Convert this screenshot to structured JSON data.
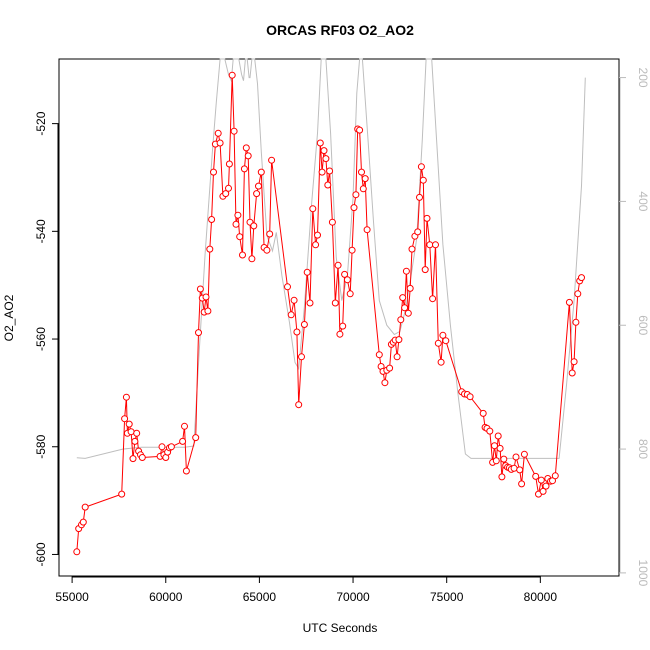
{
  "chart_data": {
    "type": "line",
    "title": "ORCAS RF03 O2_AO2",
    "xlabel": "UTC Seconds",
    "ylabel": "O2_AO2",
    "xlim": [
      54300,
      84200
    ],
    "ylim": [
      -604,
      -508
    ],
    "y2lim": [
      1005,
      170
    ],
    "y2_reversed": true,
    "x_ticks": [
      55000,
      60000,
      65000,
      70000,
      75000,
      80000
    ],
    "x_tick_labels": [
      "55000",
      "60000",
      "65000",
      "70000",
      "75000",
      "80000"
    ],
    "y_ticks": [
      -600,
      -580,
      -560,
      -540,
      -520
    ],
    "y_tick_labels": [
      "-600",
      "-580",
      "-560",
      "-540",
      "-520"
    ],
    "y2_ticks": [
      200,
      400,
      600,
      800,
      1000
    ],
    "y2_tick_labels": [
      "200",
      "400",
      "600",
      "800",
      "1000"
    ],
    "colors": {
      "main_series": "#ff0000",
      "secondary_series": "#bebebe",
      "right_axis": "#bbbbbb"
    },
    "series": [
      {
        "role": "primary",
        "points": [
          [
            55250,
            -599.5
          ],
          [
            55350,
            -595.2
          ],
          [
            55500,
            -594.5
          ],
          [
            55600,
            -594.0
          ],
          [
            55700,
            -591.2
          ],
          [
            57650,
            -588.8
          ],
          [
            57800,
            -574.8
          ],
          [
            57900,
            -570.8
          ],
          [
            57950,
            -577.5
          ],
          [
            58050,
            -575.8
          ],
          [
            58150,
            -577.2
          ],
          [
            58250,
            -582.2
          ],
          [
            58350,
            -579.0
          ],
          [
            58450,
            -577.5
          ],
          [
            58550,
            -580.8
          ],
          [
            58650,
            -581.5
          ],
          [
            58750,
            -582.0
          ],
          [
            59700,
            -581.8
          ],
          [
            59800,
            -580.0
          ],
          [
            59900,
            -581.5
          ],
          [
            60000,
            -582.0
          ],
          [
            60100,
            -581.0
          ],
          [
            60200,
            -580.2
          ],
          [
            60300,
            -580.0
          ],
          [
            60900,
            -579.0
          ],
          [
            61000,
            -576.2
          ],
          [
            61100,
            -584.5
          ],
          [
            61600,
            -578.3
          ],
          [
            61750,
            -558.8
          ],
          [
            61850,
            -550.7
          ],
          [
            61950,
            -552.4
          ],
          [
            62050,
            -555.0
          ],
          [
            62150,
            -552.2
          ],
          [
            62250,
            -554.8
          ],
          [
            62350,
            -543.3
          ],
          [
            62450,
            -537.8
          ],
          [
            62550,
            -529.0
          ],
          [
            62650,
            -523.8
          ],
          [
            62800,
            -521.8
          ],
          [
            62900,
            -523.6
          ],
          [
            63050,
            -533.5
          ],
          [
            63200,
            -533.0
          ],
          [
            63350,
            -532.0
          ],
          [
            63400,
            -527.5
          ],
          [
            63550,
            -511.0
          ],
          [
            63650,
            -521.4
          ],
          [
            63750,
            -538.7
          ],
          [
            63850,
            -537.0
          ],
          [
            63950,
            -541.0
          ],
          [
            64100,
            -544.4
          ],
          [
            64200,
            -528.4
          ],
          [
            64300,
            -524.5
          ],
          [
            64400,
            -526.0
          ],
          [
            64500,
            -538.3
          ],
          [
            64600,
            -545.1
          ],
          [
            64700,
            -539.0
          ],
          [
            64850,
            -533.0
          ],
          [
            64950,
            -531.6
          ],
          [
            65100,
            -529.0
          ],
          [
            65250,
            -543.0
          ],
          [
            65400,
            -543.5
          ],
          [
            65550,
            -540.5
          ],
          [
            65650,
            -526.8
          ],
          [
            66500,
            -550.3
          ],
          [
            66700,
            -555.5
          ],
          [
            66850,
            -552.8
          ],
          [
            67000,
            -558.7
          ],
          [
            67100,
            -572.2
          ],
          [
            67250,
            -563.3
          ],
          [
            67400,
            -557.3
          ],
          [
            67550,
            -547.6
          ],
          [
            67700,
            -553.3
          ],
          [
            67850,
            -535.8
          ],
          [
            68000,
            -542.5
          ],
          [
            68100,
            -540.7
          ],
          [
            68250,
            -523.6
          ],
          [
            68350,
            -529.0
          ],
          [
            68450,
            -525.0
          ],
          [
            68550,
            -526.5
          ],
          [
            68650,
            -531.4
          ],
          [
            68750,
            -528.8
          ],
          [
            68900,
            -538.3
          ],
          [
            69050,
            -553.3
          ],
          [
            69200,
            -546.3
          ],
          [
            69300,
            -559.1
          ],
          [
            69450,
            -557.6
          ],
          [
            69550,
            -548.0
          ],
          [
            69700,
            -549.0
          ],
          [
            69850,
            -551.6
          ],
          [
            69950,
            -543.5
          ],
          [
            70050,
            -535.6
          ],
          [
            70150,
            -533.2
          ],
          [
            70250,
            -521.0
          ],
          [
            70350,
            -521.2
          ],
          [
            70450,
            -529.0
          ],
          [
            70550,
            -532.1
          ],
          [
            70650,
            -530.2
          ],
          [
            70750,
            -539.7
          ],
          [
            71400,
            -562.9
          ],
          [
            71500,
            -565.1
          ],
          [
            71600,
            -566.0
          ],
          [
            71700,
            -568.1
          ],
          [
            71800,
            -565.8
          ],
          [
            71950,
            -565.4
          ],
          [
            72050,
            -561.0
          ],
          [
            72150,
            -560.6
          ],
          [
            72250,
            -560.2
          ],
          [
            72350,
            -563.3
          ],
          [
            72450,
            -560.1
          ],
          [
            72550,
            -556.4
          ],
          [
            72650,
            -552.3
          ],
          [
            72750,
            -554.2
          ],
          [
            72850,
            -547.4
          ],
          [
            72950,
            -555.2
          ],
          [
            73050,
            -550.6
          ],
          [
            73150,
            -543.3
          ],
          [
            73300,
            -540.9
          ],
          [
            73450,
            -540.1
          ],
          [
            73550,
            -533.7
          ],
          [
            73650,
            -528.0
          ],
          [
            73750,
            -530.5
          ],
          [
            73850,
            -547.1
          ],
          [
            73950,
            -537.6
          ],
          [
            74100,
            -542.5
          ],
          [
            74250,
            -552.5
          ],
          [
            74400,
            -542.5
          ],
          [
            74550,
            -560.8
          ],
          [
            74700,
            -564.3
          ],
          [
            74800,
            -559.3
          ],
          [
            74950,
            -560.3
          ],
          [
            75800,
            -569.8
          ],
          [
            75950,
            -570.2
          ],
          [
            76100,
            -570.3
          ],
          [
            76250,
            -570.7
          ],
          [
            76950,
            -573.8
          ],
          [
            77050,
            -576.4
          ],
          [
            77150,
            -576.6
          ],
          [
            77300,
            -577.1
          ],
          [
            77450,
            -582.9
          ],
          [
            77550,
            -579.8
          ],
          [
            77650,
            -582.6
          ],
          [
            77750,
            -578.0
          ],
          [
            77850,
            -580.3
          ],
          [
            77950,
            -585.6
          ],
          [
            78050,
            -582.3
          ],
          [
            78150,
            -583.5
          ],
          [
            78250,
            -583.8
          ],
          [
            78350,
            -583.9
          ],
          [
            78450,
            -584.2
          ],
          [
            78600,
            -584.0
          ],
          [
            78700,
            -581.9
          ],
          [
            78900,
            -584.3
          ],
          [
            79000,
            -586.9
          ],
          [
            79150,
            -581.4
          ],
          [
            79750,
            -585.5
          ],
          [
            79900,
            -588.8
          ],
          [
            80050,
            -586.2
          ],
          [
            80150,
            -588.3
          ],
          [
            80300,
            -587.3
          ],
          [
            80400,
            -585.9
          ],
          [
            80550,
            -586.4
          ],
          [
            80650,
            -586.3
          ],
          [
            80800,
            -585.4
          ],
          [
            81550,
            -553.2
          ],
          [
            81700,
            -566.3
          ],
          [
            81800,
            -564.2
          ],
          [
            81900,
            -556.9
          ],
          [
            82000,
            -551.6
          ],
          [
            82100,
            -549.2
          ],
          [
            82200,
            -548.6
          ]
        ]
      },
      {
        "role": "secondary",
        "points": [
          [
            55250,
            814
          ],
          [
            55700,
            815
          ],
          [
            57700,
            800
          ],
          [
            58700,
            797
          ],
          [
            61000,
            797
          ],
          [
            61500,
            795
          ],
          [
            61800,
            635
          ],
          [
            62100,
            485
          ],
          [
            62500,
            315
          ],
          [
            62700,
            240
          ],
          [
            62900,
            160
          ],
          [
            63150,
            140
          ],
          [
            63350,
            195
          ],
          [
            63500,
            205
          ],
          [
            63600,
            160
          ],
          [
            63700,
            160
          ],
          [
            63900,
            160
          ],
          [
            64050,
            195
          ],
          [
            64150,
            205
          ],
          [
            64250,
            160
          ],
          [
            64350,
            160
          ],
          [
            64450,
            200
          ],
          [
            64500,
            200
          ],
          [
            64600,
            160
          ],
          [
            64750,
            160
          ],
          [
            64900,
            210
          ],
          [
            65100,
            320
          ],
          [
            65400,
            455
          ],
          [
            65700,
            480
          ],
          [
            65900,
            450
          ],
          [
            66200,
            520
          ],
          [
            66600,
            595
          ],
          [
            66900,
            660
          ],
          [
            67100,
            670
          ],
          [
            67400,
            570
          ],
          [
            67800,
            400
          ],
          [
            68100,
            290
          ],
          [
            68300,
            160
          ],
          [
            68550,
            160
          ],
          [
            68800,
            290
          ],
          [
            69100,
            490
          ],
          [
            69400,
            560
          ],
          [
            69700,
            520
          ],
          [
            70000,
            395
          ],
          [
            70200,
            225
          ],
          [
            70350,
            160
          ],
          [
            70500,
            160
          ],
          [
            70800,
            300
          ],
          [
            71100,
            435
          ],
          [
            71400,
            560
          ],
          [
            71800,
            600
          ],
          [
            72200,
            615
          ],
          [
            72500,
            610
          ],
          [
            72800,
            575
          ],
          [
            73100,
            520
          ],
          [
            73400,
            460
          ],
          [
            73700,
            300
          ],
          [
            73900,
            160
          ],
          [
            74200,
            160
          ],
          [
            74500,
            320
          ],
          [
            74800,
            470
          ],
          [
            75200,
            600
          ],
          [
            75600,
            710
          ],
          [
            76000,
            808
          ],
          [
            76300,
            815
          ],
          [
            80500,
            815
          ],
          [
            81000,
            815
          ],
          [
            81400,
            695
          ],
          [
            81800,
            560
          ],
          [
            82200,
            375
          ],
          [
            82400,
            200
          ]
        ]
      }
    ]
  }
}
